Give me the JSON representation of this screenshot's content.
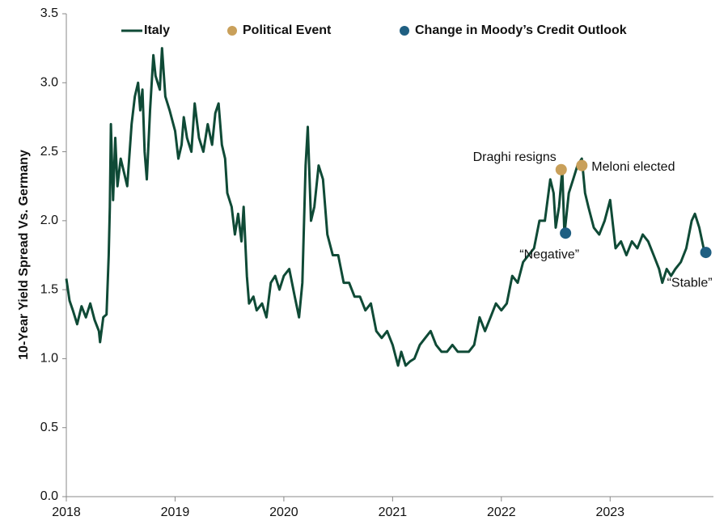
{
  "chart_data": {
    "type": "line",
    "ylabel": "10-Year Yield Spread Vs. Germany",
    "xlim": [
      2018,
      2023.95
    ],
    "xticks": [
      2018,
      2019,
      2020,
      2021,
      2022,
      2023
    ],
    "ylim": [
      0,
      3.5
    ],
    "yticks": [
      {
        "value": 0,
        "label": "0.0"
      },
      {
        "value": 0.5,
        "label": "0.5"
      },
      {
        "value": 1,
        "label": "1.0"
      },
      {
        "value": 1.5,
        "label": "1.5"
      },
      {
        "value": 2,
        "label": "2.0"
      },
      {
        "value": 2.5,
        "label": "2.5"
      },
      {
        "value": 3,
        "label": "3.0"
      },
      {
        "value": 3.5,
        "label": "3.5"
      }
    ],
    "grid": false,
    "series": [
      {
        "name": "Italy",
        "color": "#0f4a36",
        "x": [
          2018.0,
          2018.03,
          2018.06,
          2018.1,
          2018.14,
          2018.18,
          2018.22,
          2018.26,
          2018.3,
          2018.31,
          2018.34,
          2018.37,
          2018.39,
          2018.4,
          2018.41,
          2018.43,
          2018.45,
          2018.47,
          2018.5,
          2018.53,
          2018.56,
          2018.6,
          2018.63,
          2018.66,
          2018.68,
          2018.7,
          2018.72,
          2018.74,
          2018.77,
          2018.8,
          2018.82,
          2018.86,
          2018.88,
          2018.91,
          2018.95,
          2019.0,
          2019.03,
          2019.06,
          2019.08,
          2019.11,
          2019.15,
          2019.18,
          2019.22,
          2019.26,
          2019.3,
          2019.34,
          2019.37,
          2019.4,
          2019.43,
          2019.46,
          2019.48,
          2019.52,
          2019.55,
          2019.58,
          2019.61,
          2019.63,
          2019.66,
          2019.68,
          2019.72,
          2019.75,
          2019.8,
          2019.84,
          2019.88,
          2019.92,
          2019.96,
          2020.0,
          2020.05,
          2020.1,
          2020.14,
          2020.17,
          2020.2,
          2020.22,
          2020.25,
          2020.28,
          2020.32,
          2020.36,
          2020.4,
          2020.45,
          2020.5,
          2020.55,
          2020.6,
          2020.65,
          2020.7,
          2020.75,
          2020.8,
          2020.85,
          2020.9,
          2020.95,
          2021.0,
          2021.05,
          2021.08,
          2021.12,
          2021.16,
          2021.2,
          2021.25,
          2021.3,
          2021.35,
          2021.4,
          2021.45,
          2021.5,
          2021.55,
          2021.6,
          2021.65,
          2021.7,
          2021.75,
          2021.8,
          2021.85,
          2021.9,
          2021.95,
          2022.0,
          2022.05,
          2022.1,
          2022.15,
          2022.2,
          2022.25,
          2022.3,
          2022.35,
          2022.4,
          2022.45,
          2022.48,
          2022.5,
          2022.53,
          2022.56,
          2022.58,
          2022.62,
          2022.66,
          2022.7,
          2022.74,
          2022.77,
          2022.8,
          2022.85,
          2022.9,
          2022.95,
          2023.0,
          2023.05,
          2023.1,
          2023.15,
          2023.2,
          2023.25,
          2023.3,
          2023.35,
          2023.4,
          2023.45,
          2023.48,
          2023.52,
          2023.56,
          2023.6,
          2023.65,
          2023.7,
          2023.75,
          2023.78,
          2023.82,
          2023.86,
          2023.9
        ],
        "values": [
          1.58,
          1.42,
          1.35,
          1.25,
          1.38,
          1.3,
          1.4,
          1.28,
          1.2,
          1.12,
          1.3,
          1.32,
          1.75,
          2.1,
          2.7,
          2.15,
          2.6,
          2.25,
          2.45,
          2.35,
          2.25,
          2.7,
          2.9,
          3.0,
          2.8,
          2.95,
          2.5,
          2.3,
          2.8,
          3.2,
          3.05,
          2.95,
          3.25,
          2.9,
          2.8,
          2.65,
          2.45,
          2.55,
          2.75,
          2.6,
          2.5,
          2.85,
          2.6,
          2.5,
          2.7,
          2.55,
          2.78,
          2.85,
          2.55,
          2.45,
          2.2,
          2.1,
          1.9,
          2.05,
          1.85,
          2.1,
          1.6,
          1.4,
          1.45,
          1.35,
          1.4,
          1.3,
          1.55,
          1.6,
          1.5,
          1.6,
          1.65,
          1.45,
          1.3,
          1.55,
          2.4,
          2.68,
          2.0,
          2.1,
          2.4,
          2.3,
          1.9,
          1.75,
          1.75,
          1.55,
          1.55,
          1.45,
          1.45,
          1.35,
          1.4,
          1.2,
          1.15,
          1.2,
          1.1,
          0.95,
          1.05,
          0.95,
          0.98,
          1.0,
          1.1,
          1.15,
          1.2,
          1.1,
          1.05,
          1.05,
          1.1,
          1.05,
          1.05,
          1.05,
          1.1,
          1.3,
          1.2,
          1.3,
          1.4,
          1.35,
          1.4,
          1.6,
          1.55,
          1.7,
          1.75,
          1.8,
          2.0,
          2.0,
          2.3,
          2.2,
          1.95,
          2.1,
          2.37,
          1.9,
          2.2,
          2.3,
          2.4,
          2.45,
          2.2,
          2.1,
          1.95,
          1.9,
          2.0,
          2.15,
          1.8,
          1.85,
          1.75,
          1.85,
          1.8,
          1.9,
          1.85,
          1.75,
          1.65,
          1.55,
          1.65,
          1.6,
          1.65,
          1.7,
          1.8,
          2.0,
          2.05,
          1.95,
          1.8,
          1.75
        ]
      },
      {
        "name": "Political Event",
        "color": "#c9a05a",
        "type": "scatter",
        "x": [
          2022.55,
          2022.74
        ],
        "values": [
          2.37,
          2.4
        ],
        "labels": [
          "Draghi resigns",
          "Meloni elected"
        ]
      },
      {
        "name": "Change in Moody’s Credit Outlook",
        "color": "#1f5f82",
        "type": "scatter",
        "x": [
          2022.59,
          2023.88
        ],
        "values": [
          1.91,
          1.77
        ],
        "labels": [
          "“Negative”",
          "“Stable”"
        ]
      }
    ]
  }
}
